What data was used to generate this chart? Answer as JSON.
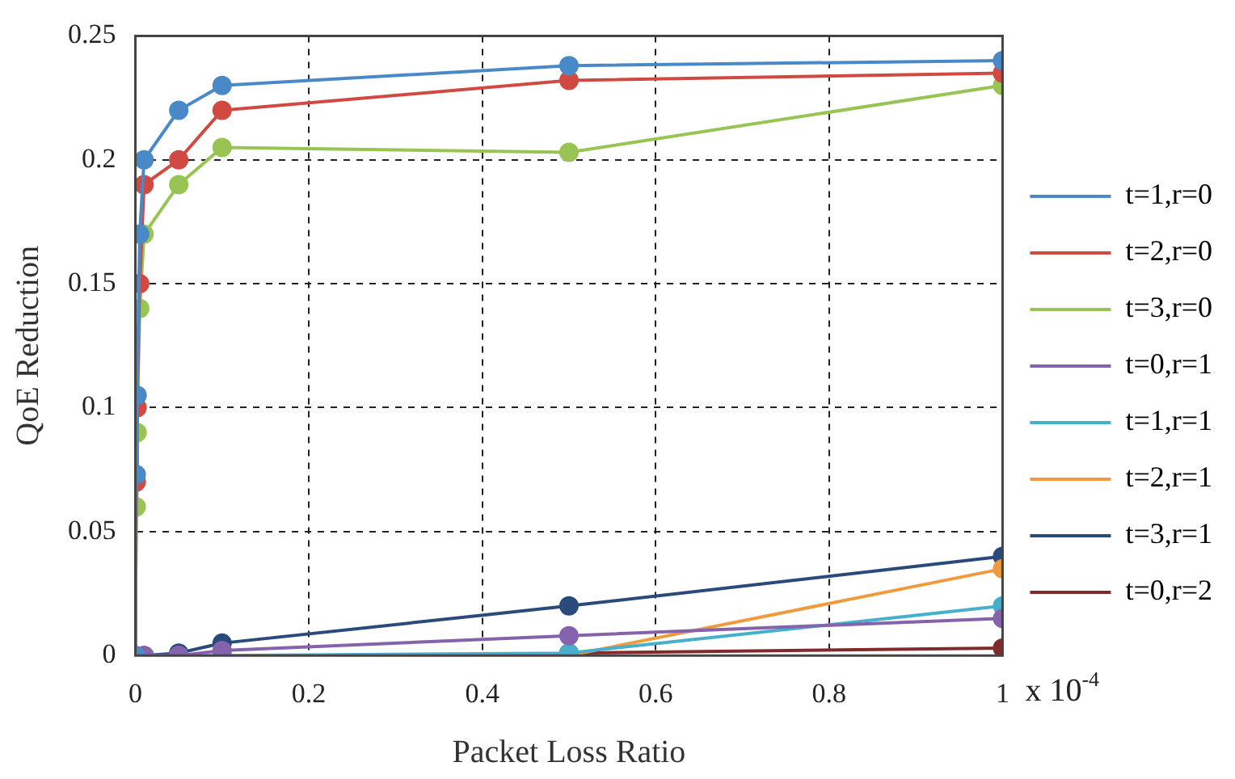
{
  "chart_data": {
    "type": "line",
    "xlabel": "Packet Loss Ratio",
    "ylabel": "QoE Reduction",
    "annotations": [
      "x 10$^{-4}$"
    ],
    "xlim": [
      0,
      1
    ],
    "xticks": [
      0,
      0.2,
      0.4,
      0.6,
      0.8,
      1
    ],
    "ylim": [
      0,
      0.25
    ],
    "yticks": [
      0,
      0.05,
      0.1,
      0.15,
      0.2,
      0.25
    ],
    "grid": true,
    "legend": "right",
    "marker": "circle",
    "line_style": "solid",
    "x": [
      0,
      0.001,
      0.002,
      0.005,
      0.01,
      0.05,
      0.1,
      0.5,
      1
    ],
    "series": [
      {
        "name": "t=1,r=0",
        "color": "#4a89c8",
        "values": [
          0,
          0.073,
          0.105,
          0.17,
          0.2,
          0.22,
          0.23,
          0.238,
          0.24
        ]
      },
      {
        "name": "t=2,r=0",
        "color": "#d04a42",
        "values": [
          0,
          0.07,
          0.1,
          0.15,
          0.19,
          0.2,
          0.22,
          0.232,
          0.235
        ]
      },
      {
        "name": "t=3,r=0",
        "color": "#98c454",
        "values": [
          0,
          0.06,
          0.09,
          0.14,
          0.17,
          0.19,
          0.205,
          0.203,
          0.23
        ]
      },
      {
        "name": "t=0,r=1",
        "color": "#8462ac",
        "x": [
          0,
          0.01,
          0.05,
          0.1,
          0.5,
          1
        ],
        "values": [
          0,
          0,
          0,
          0.002,
          0.008,
          0.015
        ]
      },
      {
        "name": "t=1,r=1",
        "color": "#46b0cc",
        "x": [
          0,
          0.01,
          0.05,
          0.1,
          0.5,
          1
        ],
        "values": [
          0,
          0,
          0,
          0,
          0.001,
          0.02
        ]
      },
      {
        "name": "t=2,r=1",
        "color": "#f09a3e",
        "x": [
          0.5,
          1
        ],
        "values": [
          0,
          0.035
        ]
      },
      {
        "name": "t=3,r=1",
        "color": "#2a4a7c",
        "x": [
          0,
          0.01,
          0.05,
          0.1,
          0.5,
          1
        ],
        "values": [
          0,
          0,
          0.001,
          0.005,
          0.02,
          0.04
        ]
      },
      {
        "name": "t=0,r=2",
        "color": "#822a2a",
        "x": [
          0.5,
          1
        ],
        "values": [
          0.001,
          0.003
        ]
      }
    ]
  }
}
